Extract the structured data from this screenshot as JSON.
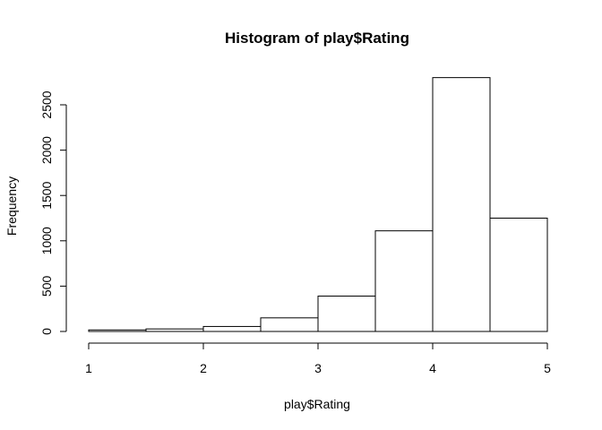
{
  "chart_data": {
    "type": "bar",
    "title": "Histogram of play$Rating",
    "xlabel": "play$Rating",
    "ylabel": "Frequency",
    "bins": [
      {
        "start": 1.0,
        "end": 1.5,
        "count": 17
      },
      {
        "start": 1.5,
        "end": 2.0,
        "count": 28
      },
      {
        "start": 2.0,
        "end": 2.5,
        "count": 55
      },
      {
        "start": 2.5,
        "end": 3.0,
        "count": 150
      },
      {
        "start": 3.0,
        "end": 3.5,
        "count": 390
      },
      {
        "start": 3.5,
        "end": 4.0,
        "count": 1110
      },
      {
        "start": 4.0,
        "end": 4.5,
        "count": 2800
      },
      {
        "start": 4.5,
        "end": 5.0,
        "count": 1250
      }
    ],
    "xlim": [
      1,
      5
    ],
    "ylim": [
      0,
      2800
    ],
    "x_ticks": [
      "1",
      "2",
      "3",
      "4",
      "5"
    ],
    "y_ticks": [
      "0",
      "500",
      "1000",
      "1500",
      "2000",
      "2500"
    ],
    "grid": false,
    "legend": "none"
  }
}
